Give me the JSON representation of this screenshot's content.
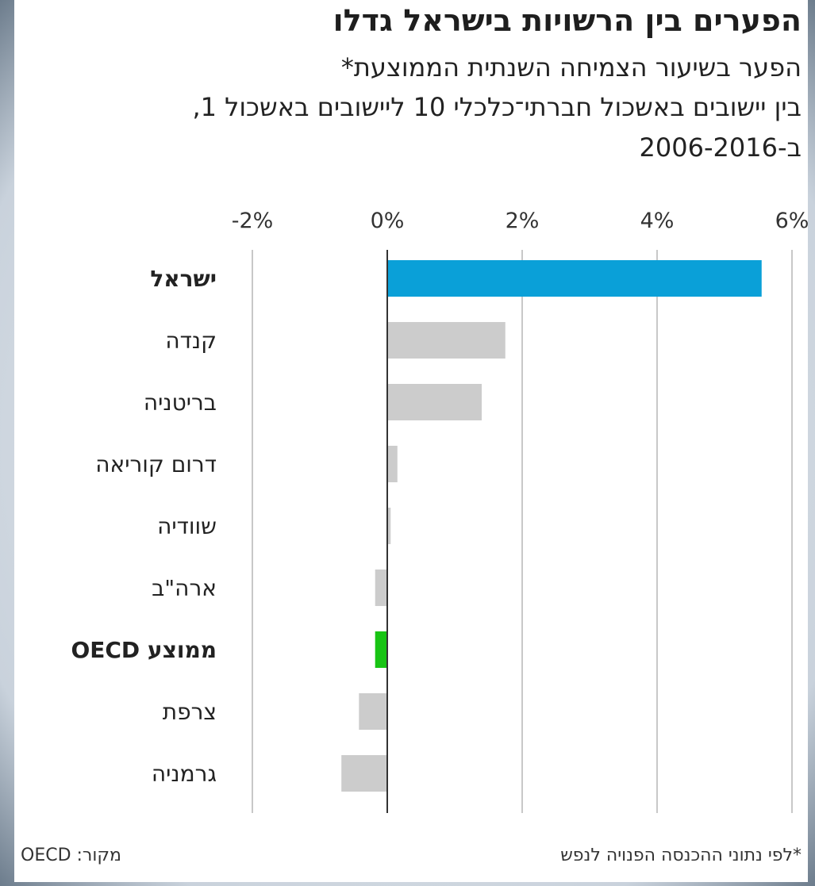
{
  "chart_data": {
    "type": "bar",
    "orientation": "horizontal",
    "title": "הפערים בין הרשויות בישראל גדלו",
    "subtitle": [
      "הפער בשיעור הצמיחה השנתית הממוצעת*",
      "בין יישובים באשכול חברתי־כלכלי 10 ליישובים באשכול 1,",
      "ב-2006-2016"
    ],
    "categories": [
      "ישראל",
      "קנדה",
      "בריטניה",
      "דרום קוריאה",
      "שוודיה",
      "ארה\"ב",
      "ממוצע OECD",
      "צרפת",
      "גרמניה"
    ],
    "values": [
      5.55,
      1.75,
      1.4,
      0.15,
      0.05,
      -0.18,
      -0.18,
      -0.42,
      -0.68
    ],
    "highlight": {
      "ישראל": "#0aa0d8",
      "ממוצע OECD": "#18c414"
    },
    "bold_categories": [
      "ישראל",
      "ממוצע OECD"
    ],
    "default_color": "#cccccc",
    "xlim": [
      -2,
      6
    ],
    "ticks": [
      -2,
      0,
      2,
      4,
      6
    ],
    "tick_labels": [
      "-2%",
      "0%",
      "2%",
      "4%",
      "6%"
    ],
    "xlabel": "",
    "ylabel": "",
    "grid": true
  },
  "footnote": "*לפי נתוני ההכנסה הפנויה לנפש",
  "source": "מקור: OECD"
}
